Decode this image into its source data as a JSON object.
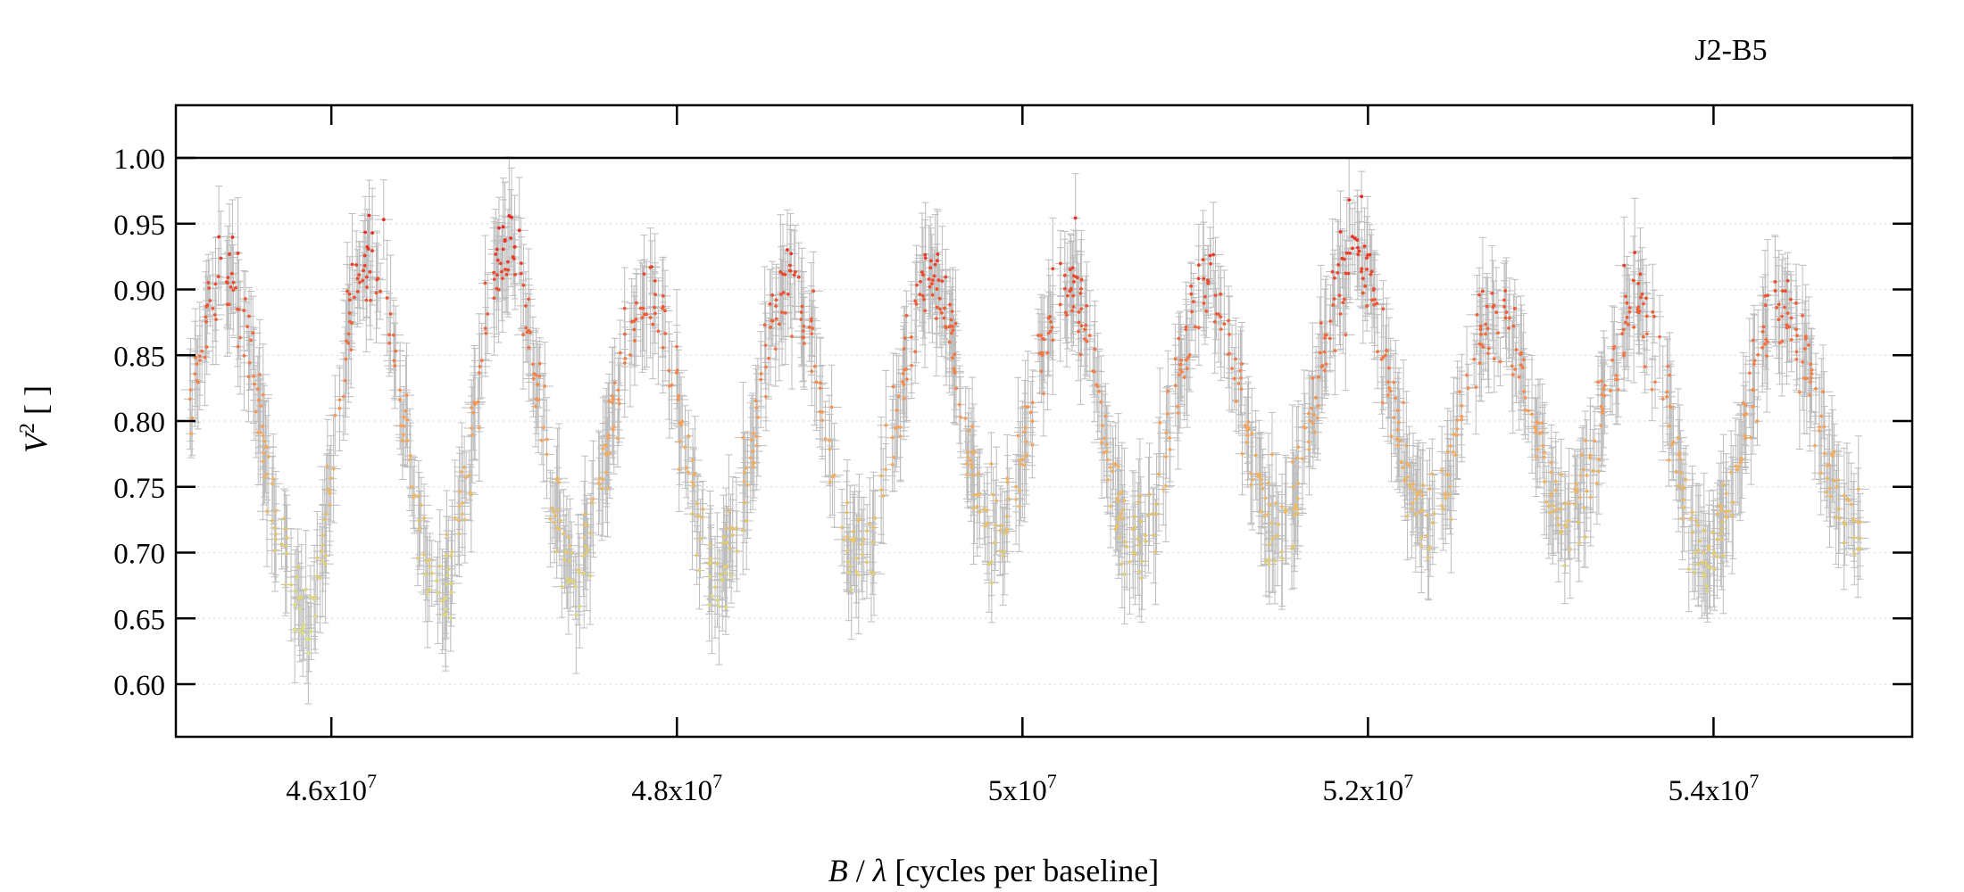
{
  "chart_data": {
    "type": "scatter",
    "title": "J2-B5",
    "xlabel": {
      "italic": "B",
      "sep": " / ",
      "lambda": "λ",
      "rest": " [cycles per baseline]"
    },
    "ylabel": {
      "base": "V",
      "sup": "2",
      "rest": " [ ]"
    },
    "xlim": [
      45100000,
      55150000
    ],
    "ylim": [
      0.56,
      1.04
    ],
    "x_ticks": [
      {
        "value": 46000000,
        "mant": "4.6x10",
        "exp": "7"
      },
      {
        "value": 48000000,
        "mant": "4.8x10",
        "exp": "7"
      },
      {
        "value": 50000000,
        "mant": "5x10",
        "exp": "7"
      },
      {
        "value": 52000000,
        "mant": "5.2x10",
        "exp": "7"
      },
      {
        "value": 54000000,
        "mant": "5.4x10",
        "exp": "7"
      }
    ],
    "y_ticks": [
      {
        "value": 0.6,
        "label": "0.60"
      },
      {
        "value": 0.65,
        "label": "0.65"
      },
      {
        "value": 0.7,
        "label": "0.70"
      },
      {
        "value": 0.75,
        "label": "0.75"
      },
      {
        "value": 0.8,
        "label": "0.80"
      },
      {
        "value": 0.85,
        "label": "0.85"
      },
      {
        "value": 0.9,
        "label": "0.90"
      },
      {
        "value": 0.95,
        "label": "0.95"
      },
      {
        "value": 1.0,
        "label": "1.00"
      }
    ],
    "reference_line_y": 1.0,
    "grid": "horizontal-dotted",
    "error_bar_color": "#bdbdbd",
    "color_scale": {
      "low": "#d8e27a",
      "mid": "#f7a35a",
      "high": "#e8281e"
    },
    "oscillation": {
      "period": 865000,
      "peaks": [
        {
          "x": 45380000,
          "v": 0.905
        },
        {
          "x": 46200000,
          "v": 0.925
        },
        {
          "x": 47020000,
          "v": 0.93
        },
        {
          "x": 47820000,
          "v": 0.9
        },
        {
          "x": 48650000,
          "v": 0.905
        },
        {
          "x": 49480000,
          "v": 0.905
        },
        {
          "x": 50250000,
          "v": 0.905
        },
        {
          "x": 51070000,
          "v": 0.9
        },
        {
          "x": 51930000,
          "v": 0.93
        },
        {
          "x": 52730000,
          "v": 0.88
        },
        {
          "x": 53560000,
          "v": 0.885
        },
        {
          "x": 54400000,
          "v": 0.88
        }
      ],
      "troughs": [
        {
          "x": 45850000,
          "v": 0.65
        },
        {
          "x": 46630000,
          "v": 0.675
        },
        {
          "x": 47400000,
          "v": 0.69
        },
        {
          "x": 48250000,
          "v": 0.685
        },
        {
          "x": 49050000,
          "v": 0.695
        },
        {
          "x": 49850000,
          "v": 0.71
        },
        {
          "x": 50650000,
          "v": 0.705
        },
        {
          "x": 51480000,
          "v": 0.72
        },
        {
          "x": 52330000,
          "v": 0.725
        },
        {
          "x": 53160000,
          "v": 0.73
        },
        {
          "x": 53960000,
          "v": 0.7
        },
        {
          "x": 54820000,
          "v": 0.715
        }
      ]
    },
    "n_points": 1500,
    "typical_error": 0.03
  }
}
